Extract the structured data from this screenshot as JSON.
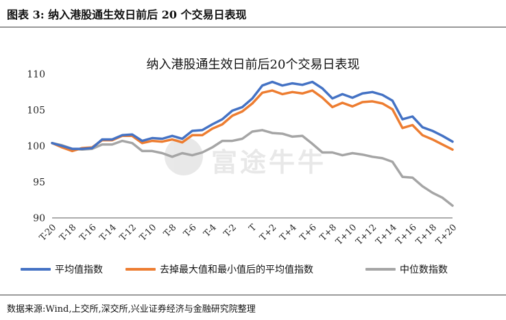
{
  "figure": {
    "title": "图表 3:  纳入港股通生效日前后 20 个交易日表现",
    "source": "数据来源:Wind,上交所,深交所,兴业证券经济与金融研究院整理",
    "watermark": "富途牛牛"
  },
  "colors": {
    "avg": "#4472C4",
    "trimmed": "#ED7D31",
    "median": "#A5A5A5",
    "axis": "#595959",
    "text": "#262626"
  },
  "chart_data": {
    "type": "line",
    "title": "纳入港股通生效日前后20个交易日表现",
    "xlabel": "",
    "ylabel": "",
    "ylim": [
      90,
      110
    ],
    "yticks": [
      90,
      95,
      100,
      105,
      110
    ],
    "grid": false,
    "legend_position": "bottom",
    "x": [
      "T-20",
      "T-19",
      "T-18",
      "T-17",
      "T-16",
      "T-15",
      "T-14",
      "T-13",
      "T-12",
      "T-11",
      "T-10",
      "T-9",
      "T-8",
      "T-7",
      "T-6",
      "T-5",
      "T-4",
      "T-3",
      "T-2",
      "T-1",
      "T",
      "T+1",
      "T+2",
      "T+3",
      "T+4",
      "T+5",
      "T+6",
      "T+7",
      "T+8",
      "T+9",
      "T+10",
      "T+11",
      "T+12",
      "T+13",
      "T+14",
      "T+15",
      "T+16",
      "T+17",
      "T+18",
      "T+19",
      "T+20"
    ],
    "x_tick_labels": [
      "T-20",
      "T-18",
      "T-16",
      "T-14",
      "T-12",
      "T-10",
      "T-8",
      "T-6",
      "T-4",
      "T-2",
      "T",
      "T+2",
      "T+4",
      "T+6",
      "T+8",
      "T+10",
      "T+12",
      "T+14",
      "T+16",
      "T+18",
      "T+20"
    ],
    "series": [
      {
        "name": "平均值指数",
        "color_key": "avg",
        "values": [
          100.4,
          100.0,
          99.6,
          99.6,
          99.7,
          100.9,
          100.9,
          101.5,
          101.6,
          100.7,
          101.1,
          101.0,
          101.4,
          101.0,
          102.1,
          102.2,
          103.0,
          103.7,
          104.9,
          105.4,
          106.6,
          108.4,
          108.9,
          108.4,
          108.7,
          108.5,
          108.9,
          108.0,
          106.6,
          107.2,
          106.7,
          107.3,
          107.5,
          107.1,
          106.3,
          103.7,
          104.1,
          102.6,
          102.1,
          101.4,
          100.6
        ]
      },
      {
        "name": "去掉最大值和最小值后的平均值指数",
        "color_key": "trimmed",
        "values": [
          100.4,
          99.8,
          99.3,
          99.7,
          99.8,
          100.8,
          100.8,
          101.4,
          101.4,
          100.4,
          100.7,
          100.6,
          100.9,
          100.5,
          101.5,
          101.5,
          102.4,
          103.0,
          104.2,
          104.8,
          105.9,
          107.4,
          107.7,
          107.2,
          107.5,
          107.3,
          107.7,
          106.7,
          105.4,
          106.0,
          105.5,
          106.1,
          106.2,
          105.9,
          105.1,
          102.5,
          102.9,
          101.5,
          100.9,
          100.2,
          99.5
        ]
      },
      {
        "name": "中位数指数",
        "color_key": "median",
        "values": [
          100.4,
          100.1,
          99.6,
          99.5,
          99.6,
          100.2,
          100.2,
          100.7,
          100.4,
          99.3,
          99.3,
          99.0,
          98.5,
          99.0,
          98.7,
          99.1,
          99.8,
          100.7,
          100.7,
          101.0,
          102.0,
          102.2,
          101.8,
          101.7,
          101.3,
          101.4,
          100.3,
          99.1,
          99.1,
          98.7,
          99.0,
          98.8,
          98.5,
          98.3,
          97.8,
          95.7,
          95.6,
          94.4,
          93.5,
          92.8,
          91.7
        ]
      }
    ]
  }
}
